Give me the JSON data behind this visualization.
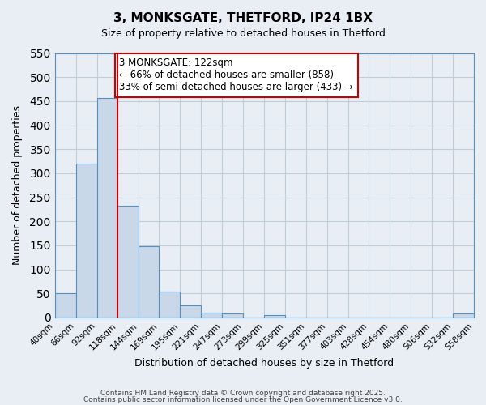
{
  "title": "3, MONKSGATE, THETFORD, IP24 1BX",
  "subtitle": "Size of property relative to detached houses in Thetford",
  "xlabel": "Distribution of detached houses by size in Thetford",
  "ylabel": "Number of detached properties",
  "bar_color": "#c8d8e8",
  "bar_edge_color": "#5590c0",
  "grid_color": "#c0ccd8",
  "background_color": "#e8eef4",
  "bins": [
    40,
    66,
    92,
    118,
    144,
    169,
    195,
    221,
    247,
    273,
    299,
    325,
    351,
    377,
    403,
    428,
    454,
    480,
    506,
    532,
    558
  ],
  "counts": [
    50,
    320,
    457,
    233,
    149,
    54,
    25,
    10,
    8,
    0,
    5,
    0,
    0,
    0,
    0,
    0,
    0,
    0,
    0,
    8
  ],
  "vline_x": 118,
  "vline_color": "#cc0000",
  "annotation_text": "3 MONKSGATE: 122sqm\n← 66% of detached houses are smaller (858)\n33% of semi-detached houses are larger (433) →",
  "annotation_box_color": "#ffffff",
  "annotation_box_edge": "#cc0000",
  "ylim": [
    0,
    550
  ],
  "tick_labels": [
    "40sqm",
    "66sqm",
    "92sqm",
    "118sqm",
    "144sqm",
    "169sqm",
    "195sqm",
    "221sqm",
    "247sqm",
    "273sqm",
    "299sqm",
    "325sqm",
    "351sqm",
    "377sqm",
    "403sqm",
    "428sqm",
    "454sqm",
    "480sqm",
    "506sqm",
    "532sqm",
    "558sqm"
  ],
  "footnote1": "Contains HM Land Registry data © Crown copyright and database right 2025.",
  "footnote2": "Contains public sector information licensed under the Open Government Licence v3.0."
}
